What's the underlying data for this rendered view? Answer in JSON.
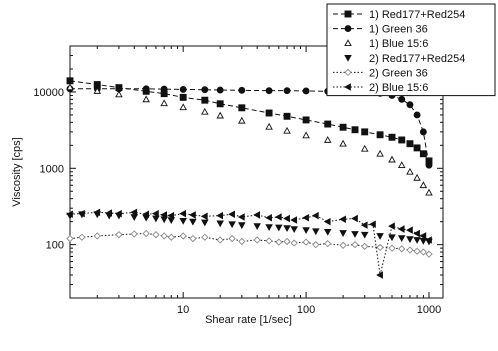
{
  "chart_data": {
    "type": "scatter",
    "xlabel": "Shear rate [1/sec]",
    "ylabel": "Viscosity [cps]",
    "x_scale": "log",
    "y_scale": "log",
    "xlim": [
      1.2,
      1300
    ],
    "ylim": [
      20,
      40000
    ],
    "x_ticks": [
      {
        "value": 10,
        "label": "10"
      },
      {
        "value": 100,
        "label": "100"
      },
      {
        "value": 1000,
        "label": "1000"
      }
    ],
    "y_ticks": [
      {
        "value": 100,
        "label": "100"
      },
      {
        "value": 1000,
        "label": "1000"
      },
      {
        "value": 10000,
        "label": "10000"
      }
    ],
    "grid": false,
    "legend_position": "top-right",
    "series": [
      {
        "name": "1) Red177+Red254",
        "marker": "square-filled",
        "line": "dash",
        "x": [
          1.2,
          2,
          3,
          5,
          7,
          10,
          15,
          20,
          30,
          50,
          70,
          100,
          150,
          200,
          250,
          300,
          400,
          500,
          600,
          700,
          800,
          900,
          1000
        ],
        "y": [
          14000,
          12500,
          11400,
          10200,
          9500,
          8500,
          7800,
          7000,
          6200,
          5300,
          4800,
          4300,
          3800,
          3450,
          3200,
          3000,
          2750,
          2550,
          2350,
          2100,
          1850,
          1550,
          1250
        ]
      },
      {
        "name": "1) Green 36",
        "marker": "circle-filled",
        "line": "dash",
        "x": [
          1.2,
          2,
          3,
          5,
          7,
          10,
          15,
          20,
          30,
          50,
          70,
          100,
          150,
          200,
          300,
          400,
          500,
          600,
          700,
          800,
          900,
          1000
        ],
        "y": [
          11000,
          11000,
          11000,
          11000,
          10900,
          10800,
          10700,
          10600,
          10500,
          10400,
          10400,
          10300,
          10200,
          10100,
          9900,
          9600,
          9000,
          8000,
          6800,
          5000,
          3000,
          1100
        ]
      },
      {
        "name": "1) Blue 15:6",
        "marker": "triangle-up-open",
        "line": "none",
        "x": [
          1.2,
          2,
          3,
          5,
          7,
          10,
          15,
          20,
          30,
          50,
          70,
          100,
          150,
          200,
          300,
          400,
          500,
          600,
          700,
          800,
          900,
          1000
        ],
        "y": [
          11500,
          10300,
          9300,
          8000,
          7100,
          6300,
          5500,
          4900,
          4200,
          3500,
          3100,
          2700,
          2350,
          2100,
          1800,
          1550,
          1300,
          1100,
          900,
          750,
          600,
          480
        ]
      },
      {
        "name": "2) Red177+Red254",
        "marker": "triangle-down-filled",
        "line": "none",
        "x": [
          1.2,
          1.5,
          2,
          2.5,
          3,
          4,
          5,
          6,
          7,
          8,
          10,
          12,
          15,
          20,
          25,
          30,
          40,
          50,
          60,
          70,
          80,
          100,
          120,
          150,
          200,
          250,
          300,
          400,
          500,
          600,
          700,
          800,
          900,
          1000
        ],
        "y": [
          240,
          250,
          250,
          240,
          240,
          230,
          225,
          220,
          215,
          210,
          205,
          200,
          195,
          190,
          185,
          180,
          175,
          170,
          168,
          165,
          160,
          155,
          150,
          147,
          142,
          138,
          135,
          130,
          125,
          122,
          118,
          115,
          112,
          110
        ]
      },
      {
        "name": "2) Green 36",
        "marker": "diamond-open",
        "line": "dot",
        "x": [
          1.2,
          1.5,
          2,
          3,
          4,
          5,
          6,
          7,
          8,
          10,
          12,
          15,
          20,
          25,
          30,
          40,
          50,
          60,
          70,
          80,
          100,
          120,
          150,
          200,
          250,
          300,
          400,
          500,
          600,
          700,
          800,
          900,
          1000
        ],
        "y": [
          120,
          125,
          130,
          135,
          138,
          140,
          135,
          130,
          125,
          130,
          120,
          125,
          115,
          120,
          110,
          115,
          112,
          108,
          110,
          105,
          108,
          100,
          103,
          98,
          100,
          95,
          92,
          90,
          88,
          85,
          82,
          80,
          75
        ]
      },
      {
        "name": "2) Blue 15:6",
        "marker": "triangle-left-filled",
        "line": "dot",
        "x": [
          1.2,
          1.5,
          2,
          2.5,
          3,
          4,
          5,
          6,
          7,
          8,
          10,
          12,
          15,
          20,
          25,
          30,
          40,
          50,
          60,
          70,
          80,
          100,
          120,
          150,
          200,
          250,
          300,
          350,
          400,
          500,
          600,
          700,
          800,
          900,
          1000
        ],
        "y": [
          250,
          255,
          265,
          260,
          255,
          265,
          250,
          255,
          245,
          240,
          255,
          245,
          235,
          240,
          250,
          230,
          245,
          225,
          230,
          220,
          210,
          225,
          240,
          200,
          215,
          220,
          180,
          185,
          40,
          175,
          160,
          155,
          140,
          130,
          115
        ]
      }
    ]
  }
}
